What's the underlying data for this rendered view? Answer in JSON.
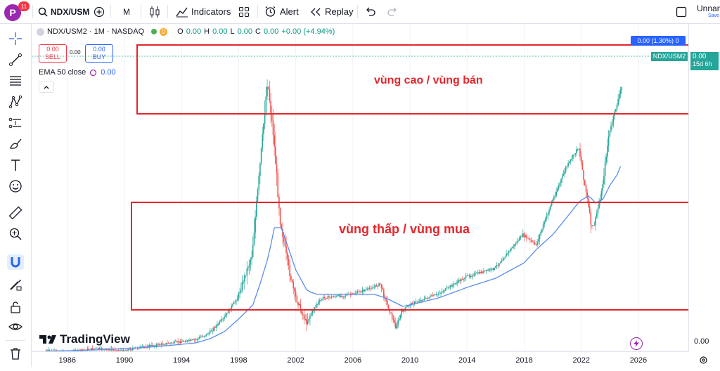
{
  "topbar": {
    "avatar_letter": "P",
    "notification_count": "11",
    "symbol": "NDX/USM",
    "interval": "M",
    "indicators_label": "Indicators",
    "alert_label": "Alert",
    "replay_label": "Replay",
    "layout_name": "Unnam",
    "save_label": "Save"
  },
  "legend": {
    "symbol_line": "NDX/USM2 · 1M · NASDAQ",
    "o_label": "O",
    "o_value": "0.00",
    "h_label": "H",
    "h_value": "0.00",
    "l_label": "L",
    "l_value": "0.00",
    "c_label": "C",
    "c_value": "0.00",
    "change": "+0.00 (+4.94%)",
    "sell_price": "0.00",
    "sell_label": "SELL",
    "spread": "0.00",
    "buy_price": "0.00",
    "buy_label": "BUY",
    "ema_label": "EMA 50 close",
    "ema_value": "0.00"
  },
  "annotations": {
    "high_zone": "vùng cao / vùng bán",
    "low_zone": "vùng thấp / vùng mua",
    "crosshair_tag": "0.00 (1.30%) 0"
  },
  "price_scale": {
    "symbol_tag": "NDX/USM2",
    "last_value": "0.00",
    "countdown": "15d 6h",
    "bottom_value": "0.00"
  },
  "branding": {
    "logo_text": "TradingView"
  },
  "chart_data": {
    "type": "line",
    "x_ticks": [
      "1986",
      "1990",
      "1994",
      "1998",
      "2002",
      "2006",
      "2010",
      "2014",
      "2018",
      "2022",
      "2026"
    ],
    "xlim": [
      1983.5,
      2029.5
    ],
    "x": [
      1984.5,
      1986,
      1988,
      1990,
      1991,
      1993,
      1995,
      1996,
      1997,
      1998,
      1999,
      1999.5,
      2000.1,
      2000.5,
      2001,
      2001.5,
      2002,
      2002.8,
      2003.5,
      2004,
      2006,
      2007.5,
      2008,
      2008.5,
      2009.1,
      2009.5,
      2010,
      2011,
      2012,
      2014,
      2016,
      2018,
      2018.9,
      2020,
      2021,
      2021.9,
      2022.5,
      2022.8,
      2023,
      2023.5,
      2024,
      2024.5,
      2024.9
    ],
    "series": [
      {
        "values": [
          465,
          468,
          462,
          465,
          461,
          455,
          450,
          440,
          420,
          390,
          330,
          220,
          80,
          155,
          280,
          340,
          385,
          425,
          400,
          390,
          385,
          375,
          370,
          400,
          432,
          410,
          400,
          392,
          385,
          360,
          348,
          300,
          315,
          255,
          205,
          175,
          250,
          290,
          285,
          240,
          160,
          120,
          90
        ]
      },
      {
        "values": [
          466,
          465,
          464,
          462,
          461,
          458,
          454,
          448,
          438,
          420,
          400,
          370,
          330,
          290,
          290,
          320,
          350,
          380,
          385,
          385,
          385,
          385,
          388,
          392,
          398,
          402,
          400,
          395,
          390,
          375,
          362,
          340,
          320,
          300,
          275,
          252,
          245,
          250,
          255,
          250,
          230,
          215,
          195
        ]
      }
    ],
    "colors": {
      "up": "#26a69a",
      "down": "#ef5350",
      "ema": "#5b8def",
      "zone": "#e3262d"
    }
  }
}
